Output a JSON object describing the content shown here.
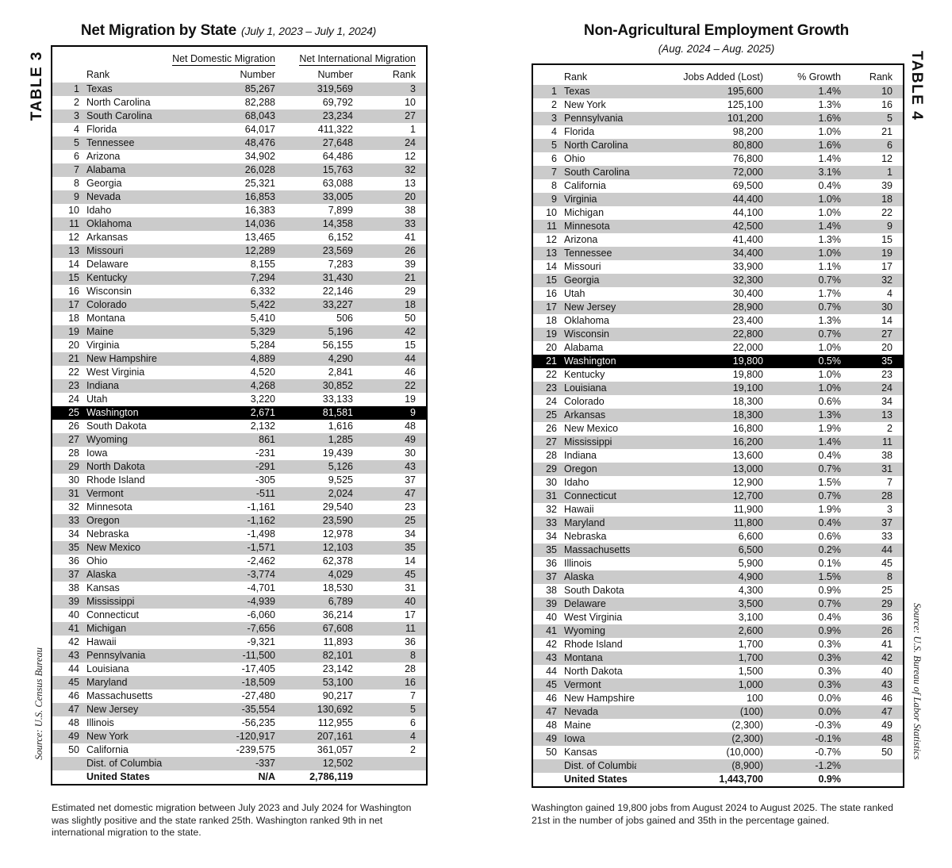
{
  "colors": {
    "stripe": "#cbcbcb",
    "highlight_bg": "#000000",
    "highlight_fg": "#ffffff",
    "border": "#000000"
  },
  "table3": {
    "side_label": "TABLE 3",
    "title": "Net Migration by State",
    "title_note": "(July 1, 2023 – July 1, 2024)",
    "group_header_domestic": "Net Domestic Migration",
    "group_header_international": "Net International Migration",
    "headers": {
      "rank_left": "Rank",
      "domestic_number": "Number",
      "international_number": "Number",
      "rank_right": "Rank"
    },
    "rows": [
      [
        "1",
        "Texas",
        "85,267",
        "319,569",
        "3"
      ],
      [
        "2",
        "North Carolina",
        "82,288",
        "69,792",
        "10"
      ],
      [
        "3",
        "South Carolina",
        "68,043",
        "23,234",
        "27"
      ],
      [
        "4",
        "Florida",
        "64,017",
        "411,322",
        "1"
      ],
      [
        "5",
        "Tennessee",
        "48,476",
        "27,648",
        "24"
      ],
      [
        "6",
        "Arizona",
        "34,902",
        "64,486",
        "12"
      ],
      [
        "7",
        "Alabama",
        "26,028",
        "15,763",
        "32"
      ],
      [
        "8",
        "Georgia",
        "25,321",
        "63,088",
        "13"
      ],
      [
        "9",
        "Nevada",
        "16,853",
        "33,005",
        "20"
      ],
      [
        "10",
        "Idaho",
        "16,383",
        "7,899",
        "38"
      ],
      [
        "11",
        "Oklahoma",
        "14,036",
        "14,358",
        "33"
      ],
      [
        "12",
        "Arkansas",
        "13,465",
        "6,152",
        "41"
      ],
      [
        "13",
        "Missouri",
        "12,289",
        "23,569",
        "26"
      ],
      [
        "14",
        "Delaware",
        "8,155",
        "7,283",
        "39"
      ],
      [
        "15",
        "Kentucky",
        "7,294",
        "31,430",
        "21"
      ],
      [
        "16",
        "Wisconsin",
        "6,332",
        "22,146",
        "29"
      ],
      [
        "17",
        "Colorado",
        "5,422",
        "33,227",
        "18"
      ],
      [
        "18",
        "Montana",
        "5,410",
        "506",
        "50"
      ],
      [
        "19",
        "Maine",
        "5,329",
        "5,196",
        "42"
      ],
      [
        "20",
        "Virginia",
        "5,284",
        "56,155",
        "15"
      ],
      [
        "21",
        "New Hampshire",
        "4,889",
        "4,290",
        "44"
      ],
      [
        "22",
        "West Virginia",
        "4,520",
        "2,841",
        "46"
      ],
      [
        "23",
        "Indiana",
        "4,268",
        "30,852",
        "22"
      ],
      [
        "24",
        "Utah",
        "3,220",
        "33,133",
        "19"
      ],
      [
        "25",
        "Washington",
        "2,671",
        "81,581",
        "9"
      ],
      [
        "26",
        "South Dakota",
        "2,132",
        "1,616",
        "48"
      ],
      [
        "27",
        "Wyoming",
        "861",
        "1,285",
        "49"
      ],
      [
        "28",
        "Iowa",
        "-231",
        "19,439",
        "30"
      ],
      [
        "29",
        "North Dakota",
        "-291",
        "5,126",
        "43"
      ],
      [
        "30",
        "Rhode Island",
        "-305",
        "9,525",
        "37"
      ],
      [
        "31",
        "Vermont",
        "-511",
        "2,024",
        "47"
      ],
      [
        "32",
        "Minnesota",
        "-1,161",
        "29,540",
        "23"
      ],
      [
        "33",
        "Oregon",
        "-1,162",
        "23,590",
        "25"
      ],
      [
        "34",
        "Nebraska",
        "-1,498",
        "12,978",
        "34"
      ],
      [
        "35",
        "New Mexico",
        "-1,571",
        "12,103",
        "35"
      ],
      [
        "36",
        "Ohio",
        "-2,462",
        "62,378",
        "14"
      ],
      [
        "37",
        "Alaska",
        "-3,774",
        "4,029",
        "45"
      ],
      [
        "38",
        "Kansas",
        "-4,701",
        "18,530",
        "31"
      ],
      [
        "39",
        "Mississippi",
        "-4,939",
        "6,789",
        "40"
      ],
      [
        "40",
        "Connecticut",
        "-6,060",
        "36,214",
        "17"
      ],
      [
        "41",
        "Michigan",
        "-7,656",
        "67,608",
        "11"
      ],
      [
        "42",
        "Hawaii",
        "-9,321",
        "11,893",
        "36"
      ],
      [
        "43",
        "Pennsylvania",
        "-11,500",
        "82,101",
        "8"
      ],
      [
        "44",
        "Louisiana",
        "-17,405",
        "23,142",
        "28"
      ],
      [
        "45",
        "Maryland",
        "-18,509",
        "53,100",
        "16"
      ],
      [
        "46",
        "Massachusetts",
        "-27,480",
        "90,217",
        "7"
      ],
      [
        "47",
        "New Jersey",
        "-35,554",
        "130,692",
        "5"
      ],
      [
        "48",
        "Illinois",
        "-56,235",
        "112,955",
        "6"
      ],
      [
        "49",
        "New York",
        "-120,917",
        "207,161",
        "4"
      ],
      [
        "50",
        "California",
        "-239,575",
        "361,057",
        "2"
      ],
      [
        "",
        "Dist. of Columbia",
        "-337",
        "12,502",
        ""
      ],
      [
        "",
        "United States",
        "N/A",
        "2,786,119",
        ""
      ]
    ],
    "highlight_row_index": 24,
    "total_row_index": 51,
    "source": "Source: U.S. Census Bureau",
    "footnote": "Estimated net domestic migration between July 2023 and July 2024 for Washington was slightly positive and the state ranked 25th. Washington ranked 9th in net international migration to the state."
  },
  "table4": {
    "side_label": "TABLE 4",
    "title": "Non-Agricultural Employment Growth",
    "subtitle": "(Aug. 2024 – Aug. 2025)",
    "headers": {
      "rank_left": "Rank",
      "jobs": "Jobs Added (Lost)",
      "growth": "% Growth",
      "rank_right": "Rank"
    },
    "rows": [
      [
        "1",
        "Texas",
        "195,600",
        "1.4%",
        "10"
      ],
      [
        "2",
        "New York",
        "125,100",
        "1.3%",
        "16"
      ],
      [
        "3",
        "Pennsylvania",
        "101,200",
        "1.6%",
        "5"
      ],
      [
        "4",
        "Florida",
        "98,200",
        "1.0%",
        "21"
      ],
      [
        "5",
        "North Carolina",
        "80,800",
        "1.6%",
        "6"
      ],
      [
        "6",
        "Ohio",
        "76,800",
        "1.4%",
        "12"
      ],
      [
        "7",
        "South Carolina",
        "72,000",
        "3.1%",
        "1"
      ],
      [
        "8",
        "California",
        "69,500",
        "0.4%",
        "39"
      ],
      [
        "9",
        "Virginia",
        "44,400",
        "1.0%",
        "18"
      ],
      [
        "10",
        "Michigan",
        "44,100",
        "1.0%",
        "22"
      ],
      [
        "11",
        "Minnesota",
        "42,500",
        "1.4%",
        "9"
      ],
      [
        "12",
        "Arizona",
        "41,400",
        "1.3%",
        "15"
      ],
      [
        "13",
        "Tennessee",
        "34,400",
        "1.0%",
        "19"
      ],
      [
        "14",
        "Missouri",
        "33,900",
        "1.1%",
        "17"
      ],
      [
        "15",
        "Georgia",
        "32,300",
        "0.7%",
        "32"
      ],
      [
        "16",
        "Utah",
        "30,400",
        "1.7%",
        "4"
      ],
      [
        "17",
        "New Jersey",
        "28,900",
        "0.7%",
        "30"
      ],
      [
        "18",
        "Oklahoma",
        "23,400",
        "1.3%",
        "14"
      ],
      [
        "19",
        "Wisconsin",
        "22,800",
        "0.7%",
        "27"
      ],
      [
        "20",
        "Alabama",
        "22,000",
        "1.0%",
        "20"
      ],
      [
        "21",
        "Washington",
        "19,800",
        "0.5%",
        "35"
      ],
      [
        "22",
        "Kentucky",
        "19,800",
        "1.0%",
        "23"
      ],
      [
        "23",
        "Louisiana",
        "19,100",
        "1.0%",
        "24"
      ],
      [
        "24",
        "Colorado",
        "18,300",
        "0.6%",
        "34"
      ],
      [
        "25",
        "Arkansas",
        "18,300",
        "1.3%",
        "13"
      ],
      [
        "26",
        "New Mexico",
        "16,800",
        "1.9%",
        "2"
      ],
      [
        "27",
        "Mississippi",
        "16,200",
        "1.4%",
        "11"
      ],
      [
        "28",
        "Indiana",
        "13,600",
        "0.4%",
        "38"
      ],
      [
        "29",
        "Oregon",
        "13,000",
        "0.7%",
        "31"
      ],
      [
        "30",
        "Idaho",
        "12,900",
        "1.5%",
        "7"
      ],
      [
        "31",
        "Connecticut",
        "12,700",
        "0.7%",
        "28"
      ],
      [
        "32",
        "Hawaii",
        "11,900",
        "1.9%",
        "3"
      ],
      [
        "33",
        "Maryland",
        "11,800",
        "0.4%",
        "37"
      ],
      [
        "34",
        "Nebraska",
        "6,600",
        "0.6%",
        "33"
      ],
      [
        "35",
        "Massachusetts",
        "6,500",
        "0.2%",
        "44"
      ],
      [
        "36",
        "Illinois",
        "5,900",
        "0.1%",
        "45"
      ],
      [
        "37",
        "Alaska",
        "4,900",
        "1.5%",
        "8"
      ],
      [
        "38",
        "South Dakota",
        "4,300",
        "0.9%",
        "25"
      ],
      [
        "39",
        "Delaware",
        "3,500",
        "0.7%",
        "29"
      ],
      [
        "40",
        "West Virginia",
        "3,100",
        "0.4%",
        "36"
      ],
      [
        "41",
        "Wyoming",
        "2,600",
        "0.9%",
        "26"
      ],
      [
        "42",
        "Rhode Island",
        "1,700",
        "0.3%",
        "41"
      ],
      [
        "43",
        "Montana",
        "1,700",
        "0.3%",
        "42"
      ],
      [
        "44",
        "North Dakota",
        "1,500",
        "0.3%",
        "40"
      ],
      [
        "45",
        "Vermont",
        "1,000",
        "0.3%",
        "43"
      ],
      [
        "46",
        "New Hampshire",
        "100",
        "0.0%",
        "46"
      ],
      [
        "47",
        "Nevada",
        "(100)",
        "0.0%",
        "47"
      ],
      [
        "48",
        "Maine",
        "(2,300)",
        "-0.3%",
        "49"
      ],
      [
        "49",
        "Iowa",
        "(2,300)",
        "-0.1%",
        "48"
      ],
      [
        "50",
        "Kansas",
        "(10,000)",
        "-0.7%",
        "50"
      ],
      [
        "",
        "Dist. of Columbia",
        "(8,900)",
        "-1.2%",
        ""
      ],
      [
        "",
        "United States",
        "1,443,700",
        "0.9%",
        ""
      ]
    ],
    "highlight_row_index": 20,
    "total_row_index": 51,
    "source": "Source: U.S. Bureau of Labor Statistics",
    "footnote": "Washington gained 19,800 jobs from August 2024 to August 2025. The state ranked 21st in the number of jobs gained and 35th in the percentage gained."
  }
}
